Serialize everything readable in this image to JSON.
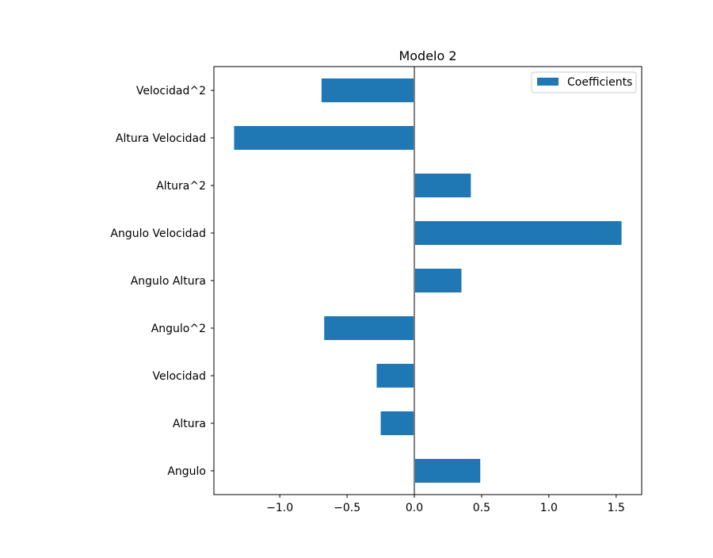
{
  "chart_data": {
    "type": "bar",
    "orientation": "horizontal",
    "title": "Modelo 2",
    "xlabel": "",
    "ylabel": "",
    "categories": [
      "Angulo",
      "Altura",
      "Velocidad",
      "Angulo^2",
      "Angulo Altura",
      "Angulo Velocidad",
      "Altura^2",
      "Altura Velocidad",
      "Velocidad^2"
    ],
    "series": [
      {
        "name": "Coefficients",
        "color": "#1f77b4",
        "values": [
          0.49,
          -0.25,
          -0.28,
          -0.67,
          0.35,
          1.54,
          0.42,
          -1.34,
          -0.69
        ]
      }
    ],
    "xlim": [
      -1.49,
      1.69
    ],
    "xticks": [
      -1.0,
      -0.5,
      0.0,
      0.5,
      1.0,
      1.5
    ],
    "xtick_labels": [
      "−1.0",
      "−0.5",
      "0.0",
      "0.5",
      "1.0",
      "1.5"
    ],
    "zero_line": {
      "value": 0,
      "color": "#808080"
    },
    "grid": false,
    "legend": {
      "placement": "top-right"
    }
  }
}
